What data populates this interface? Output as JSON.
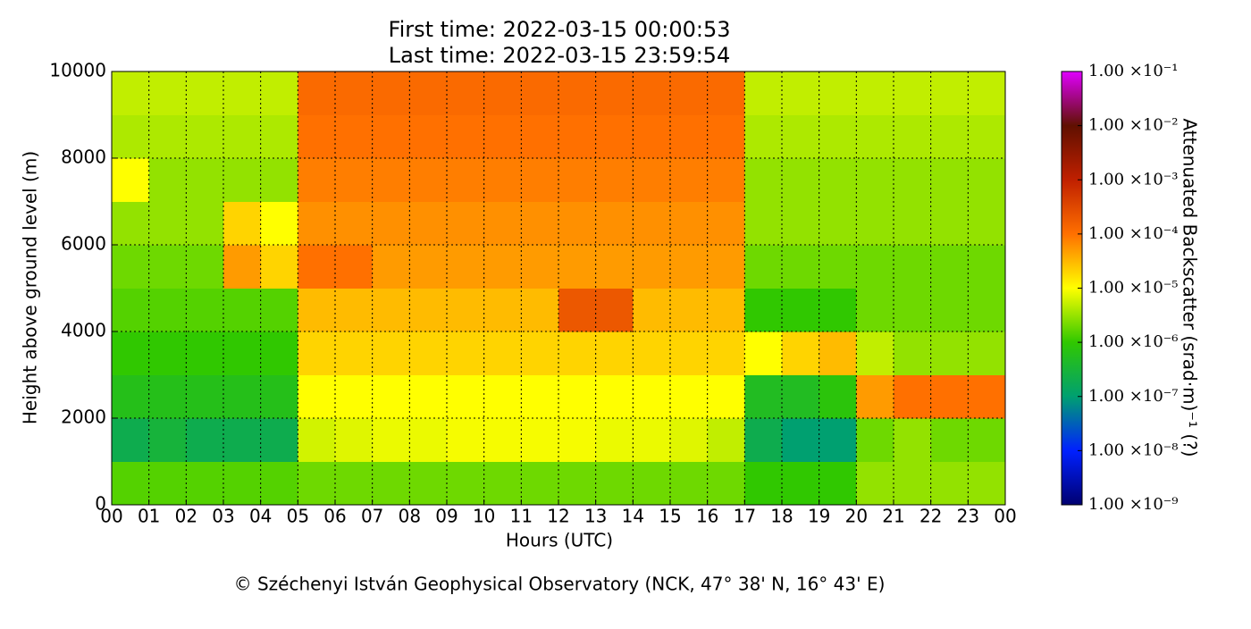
{
  "chart_data": {
    "type": "heatmap",
    "title": "First time: 2022-03-15 00:00:53",
    "subtitle": "Last time: 2022-03-15 23:59:54",
    "x_label": "Hours (UTC)",
    "y_label": "Height above ground level (m)",
    "colorbar_label": "Attenuated Backscatter (srad·m)⁻¹ (?)",
    "footer": "© Széchenyi István Geophysical Observatory (NCK, 47° 38' N, 16° 43' E)",
    "x": [
      0.5,
      1.5,
      2.5,
      3.5,
      4.5,
      5.5,
      6.5,
      7.5,
      8.5,
      9.5,
      10.5,
      11.5,
      12.5,
      13.5,
      14.5,
      15.5,
      16.5,
      17.5,
      18.5,
      19.5,
      20.5,
      21.5,
      22.5,
      23.5
    ],
    "y": [
      500,
      1500,
      2500,
      3500,
      4500,
      5500,
      6500,
      7500,
      8500,
      9500
    ],
    "values": [
      [
        1.5e-06,
        1.5e-06,
        1.5e-06,
        1.5e-06,
        1.5e-06,
        2e-06,
        2e-06,
        2e-06,
        2e-06,
        2e-06,
        2e-06,
        2e-06,
        2e-06,
        2e-06,
        2e-06,
        2e-06,
        2e-06,
        1e-06,
        1e-06,
        1e-06,
        3e-06,
        3e-06,
        3e-06,
        3e-06
      ],
      [
        2e-07,
        3e-07,
        2e-07,
        2e-07,
        2e-07,
        6e-06,
        7e-06,
        8e-06,
        8e-06,
        9e-06,
        9e-06,
        9e-06,
        9e-06,
        8e-06,
        8e-06,
        7e-06,
        5e-06,
        2e-07,
        1e-07,
        1e-07,
        2e-06,
        3e-06,
        2e-06,
        2e-06
      ],
      [
        6e-07,
        6e-07,
        6e-07,
        6e-07,
        6e-07,
        1e-05,
        1e-05,
        1e-05,
        1e-05,
        1e-05,
        1e-05,
        1e-05,
        1e-05,
        1e-05,
        1e-05,
        1e-05,
        1e-05,
        5e-07,
        5e-07,
        8e-07,
        5e-05,
        0.0001,
        0.0001,
        0.0001
      ],
      [
        1e-06,
        1e-06,
        1e-06,
        1e-06,
        1e-06,
        2e-05,
        2e-05,
        2e-05,
        2e-05,
        2e-05,
        2e-05,
        2e-05,
        2e-05,
        2e-05,
        2e-05,
        2e-05,
        2e-05,
        1e-05,
        2e-05,
        3e-05,
        5e-06,
        3e-06,
        3e-06,
        3e-06
      ],
      [
        1.5e-06,
        1.5e-06,
        1.5e-06,
        1.5e-06,
        1.5e-06,
        3e-05,
        3e-05,
        3e-05,
        3e-05,
        3e-05,
        3e-05,
        3e-05,
        0.0002,
        0.0002,
        3e-05,
        3e-05,
        3e-05,
        1e-06,
        1e-06,
        1e-06,
        2e-06,
        2e-06,
        2e-06,
        2e-06
      ],
      [
        2e-06,
        2e-06,
        2e-06,
        5e-05,
        2e-05,
        0.0001,
        0.0001,
        5e-05,
        5e-05,
        5e-05,
        5e-05,
        5e-05,
        5e-05,
        5e-05,
        5e-05,
        5e-05,
        5e-05,
        2e-06,
        2e-06,
        2e-06,
        2e-06,
        2e-06,
        2e-06,
        2e-06
      ],
      [
        3e-06,
        3e-06,
        3e-06,
        2e-05,
        1e-05,
        6e-05,
        6e-05,
        6e-05,
        6e-05,
        6e-05,
        6e-05,
        6e-05,
        6e-05,
        6e-05,
        6e-05,
        6e-05,
        6e-05,
        3e-06,
        3e-06,
        3e-06,
        3e-06,
        3e-06,
        3e-06,
        3e-06
      ],
      [
        1e-05,
        3e-06,
        3e-06,
        3e-06,
        3e-06,
        8e-05,
        8e-05,
        8e-05,
        8e-05,
        8e-05,
        8e-05,
        8e-05,
        8e-05,
        8e-05,
        8e-05,
        8e-05,
        8e-05,
        3e-06,
        3e-06,
        3e-06,
        3e-06,
        3e-06,
        3e-06,
        3e-06
      ],
      [
        4e-06,
        4e-06,
        4e-06,
        4e-06,
        4e-06,
        0.0001,
        0.0001,
        0.0001,
        0.0001,
        0.0001,
        0.0001,
        0.0001,
        0.0001,
        0.0001,
        0.0001,
        0.0001,
        0.0001,
        4e-06,
        4e-06,
        4e-06,
        4e-06,
        4e-06,
        4e-06,
        4e-06
      ],
      [
        5e-06,
        5e-06,
        5e-06,
        5e-06,
        5e-06,
        0.00012,
        0.00012,
        0.00012,
        0.00012,
        0.00012,
        0.00012,
        0.00012,
        0.00012,
        0.00012,
        0.00012,
        0.00012,
        0.00012,
        5e-06,
        5e-06,
        5e-06,
        5e-06,
        5e-06,
        5e-06,
        5e-06
      ]
    ],
    "xlim": [
      0,
      24
    ],
    "xticks": [
      {
        "value": 0,
        "label": "00"
      },
      {
        "value": 1,
        "label": "01"
      },
      {
        "value": 2,
        "label": "02"
      },
      {
        "value": 3,
        "label": "03"
      },
      {
        "value": 4,
        "label": "04"
      },
      {
        "value": 5,
        "label": "05"
      },
      {
        "value": 6,
        "label": "06"
      },
      {
        "value": 7,
        "label": "07"
      },
      {
        "value": 8,
        "label": "08"
      },
      {
        "value": 9,
        "label": "09"
      },
      {
        "value": 10,
        "label": "10"
      },
      {
        "value": 11,
        "label": "11"
      },
      {
        "value": 12,
        "label": "12"
      },
      {
        "value": 13,
        "label": "13"
      },
      {
        "value": 14,
        "label": "14"
      },
      {
        "value": 15,
        "label": "15"
      },
      {
        "value": 16,
        "label": "16"
      },
      {
        "value": 17,
        "label": "17"
      },
      {
        "value": 18,
        "label": "18"
      },
      {
        "value": 19,
        "label": "19"
      },
      {
        "value": 20,
        "label": "20"
      },
      {
        "value": 21,
        "label": "21"
      },
      {
        "value": 22,
        "label": "22"
      },
      {
        "value": 23,
        "label": "23"
      },
      {
        "value": 24,
        "label": "00"
      }
    ],
    "ylim": [
      0,
      10000
    ],
    "yticks": [
      0,
      2000,
      4000,
      6000,
      8000,
      10000
    ],
    "grid": true,
    "clim": [
      1e-09,
      0.1
    ],
    "clog": true,
    "cticks": [
      {
        "value": 1e-09,
        "label": "1.00 ×10⁻⁹"
      },
      {
        "value": 1e-08,
        "label": "1.00 ×10⁻⁸"
      },
      {
        "value": 1e-07,
        "label": "1.00 ×10⁻⁷"
      },
      {
        "value": 1e-06,
        "label": "1.00 ×10⁻⁶"
      },
      {
        "value": 1e-05,
        "label": "1.00 ×10⁻⁵"
      },
      {
        "value": 0.0001,
        "label": "1.00 ×10⁻⁴"
      },
      {
        "value": 0.001,
        "label": "1.00 ×10⁻³"
      },
      {
        "value": 0.01,
        "label": "1.00 ×10⁻²"
      },
      {
        "value": 0.1,
        "label": "1.00 ×10⁻¹"
      }
    ],
    "colormap": [
      "#000070",
      "#0020ff",
      "#00a070",
      "#30c800",
      "#ffff00",
      "#ff7000",
      "#c02000",
      "#601000",
      "#e000ff"
    ]
  }
}
